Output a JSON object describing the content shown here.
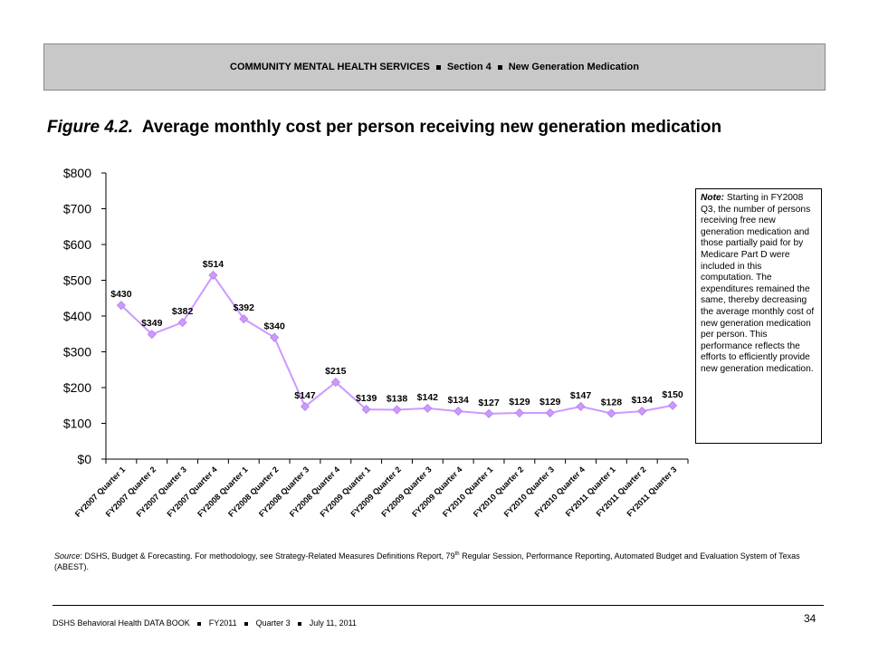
{
  "header": {
    "section_title": "COMMUNITY MENTAL HEALTH SERVICES",
    "section_num": "Section 4",
    "section_name": "New Generation Medication"
  },
  "figure": {
    "number": "Figure 4.2.",
    "title": "Average monthly cost per person receiving new generation medication"
  },
  "note": {
    "label": "Note:",
    "text": "Starting in FY2008 Q3, the number of persons receiving free new generation medication and those partially paid for by Medicare Part D were included in this computation. The expenditures remained the same, thereby decreasing the average monthly cost of new generation medication per person. This performance reflects the efforts to efficiently provide new generation medication."
  },
  "source": {
    "label": "Source",
    "text_a": ": DSHS, Budget & Forecasting. For methodology, see Strategy-Related Measures Definitions Report, 79",
    "sup": "th",
    "text_b": " Regular Session, Performance Reporting, Automated Budget and Evaluation System of Texas (ABEST)."
  },
  "footer": {
    "book": "DSHS Behavioral Health DATA BOOK",
    "fy": "FY2011",
    "quarter": "Quarter 3",
    "date": "July 11, 2011",
    "page": "34"
  },
  "colors": {
    "line": "#cc99ff",
    "marker": "#cc99ff",
    "axis": "#000000"
  },
  "chart_data": {
    "type": "line",
    "categories": [
      "FY2007 Quarter 1",
      "FY2007 Quarter 2",
      "FY2007 Quarter 3",
      "FY2007 Quarter 4",
      "FY2008 Quarter 1",
      "FY2008 Quarter 2",
      "FY2008 Quarter 3",
      "FY2008 Quarter 4",
      "FY2009 Quarter 1",
      "FY2009 Quarter 2",
      "FY2009 Quarter 3",
      "FY2009 Quarter 4",
      "FY2010 Quarter 1",
      "FY2010 Quarter 2",
      "FY2010 Quarter 3",
      "FY2010 Quarter 4",
      "FY2011 Quarter 1",
      "FY2011 Quarter 2",
      "FY2011 Quarter 3"
    ],
    "values": [
      430,
      349,
      382,
      514,
      392,
      340,
      147,
      215,
      139,
      138,
      142,
      134,
      127,
      129,
      129,
      147,
      128,
      134,
      150
    ],
    "data_labels": [
      "$430",
      "$349",
      "$382",
      "$514",
      "$392",
      "$340",
      "$147",
      "$215",
      "$139",
      "$138",
      "$142",
      "$134",
      "$127",
      "$129",
      "$129",
      "$147",
      "$128",
      "$134",
      "$150"
    ],
    "ylim": [
      0,
      800
    ],
    "yticks": [
      "$0",
      "$100",
      "$200",
      "$300",
      "$400",
      "$500",
      "$600",
      "$700",
      "$800"
    ],
    "title": "",
    "xlabel": "",
    "ylabel": "",
    "grid": false,
    "legend": false,
    "marker": "diamond"
  }
}
